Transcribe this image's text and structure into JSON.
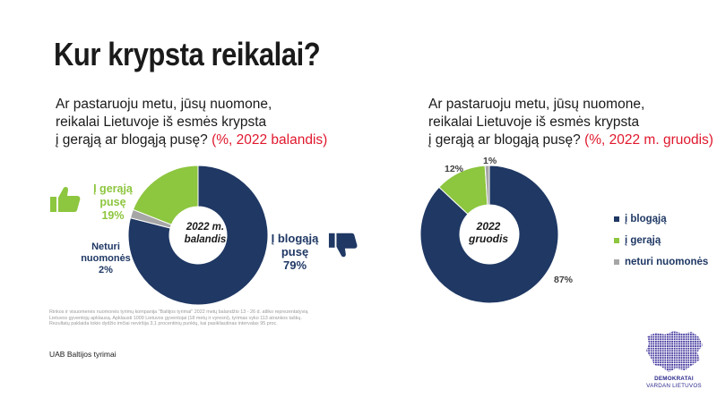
{
  "page": {
    "title": "Kur krypsta reikalai?",
    "note": "Rinkos ir visuomenės nuomonės tyrimų kompanija \"Baltijos tyrimai\" 2022 metų balandžio 13 - 26 d. atliko reprezentatyvią Lietuvos gyventojų apklausą. Apklausti 1009 Lietuvos gyventojai (18 metų ir vyresni), tyrimas vyko 113 atrankos taškų. Rezultatų paklaida tokio dydžio imčiai neviršija 3,1 procentinių punktų, kai pasikliautinas intervalas 95 proc.",
    "source": "UAB Baltijos tyrimai",
    "logo": {
      "line1": "DEMOKRATAI",
      "line2": "VARDAN LIETUVOS"
    }
  },
  "left": {
    "question_lines": [
      "Ar pastaruoju metu, jūsų nuomone,",
      "reikalai Lietuvoje iš esmės krypsta",
      "į gerąją ar blogąją pusę?"
    ],
    "period": "(%, 2022 balandis)"
  },
  "right": {
    "question_lines": [
      "Ar pastaruoju metu, jūsų nuomone,",
      "reikalai Lietuvoje iš esmės krypsta",
      "į gerąją ar blogąją pusę?"
    ],
    "period": "(%, 2022 m. gruodis)",
    "legend": [
      "į blogąją",
      "į gerąją",
      "neturi nuomonės"
    ]
  },
  "colors": {
    "bad": "#1f3864",
    "good": "#8dc63f",
    "none": "#a6a6a6",
    "red": "#e0182d"
  },
  "chart_data": [
    {
      "type": "pie",
      "variant": "donut",
      "center_label": [
        "2022 m.",
        "balandis"
      ],
      "slices": [
        {
          "label": [
            "Į blogąją",
            "pusę"
          ],
          "value": 79,
          "value_label": "79%",
          "color": "#1f3864"
        },
        {
          "label": [
            "Neturi",
            "nuomonės"
          ],
          "value": 2,
          "value_label": "2%",
          "color": "#a6a6a6"
        },
        {
          "label": [
            "Į gerąją",
            "pusę"
          ],
          "value": 19,
          "value_label": "19%",
          "color": "#8dc63f"
        }
      ]
    },
    {
      "type": "pie",
      "variant": "donut",
      "center_label": [
        "2022",
        "gruodis"
      ],
      "legend_position": "right",
      "slices": [
        {
          "label": "į blogąją",
          "value": 87,
          "value_label": "87%",
          "color": "#1f3864"
        },
        {
          "label": "į gerąją",
          "value": 12,
          "value_label": "12%",
          "color": "#8dc63f"
        },
        {
          "label": "neturi nuomonės",
          "value": 1,
          "value_label": "1%",
          "color": "#a6a6a6"
        }
      ]
    }
  ]
}
